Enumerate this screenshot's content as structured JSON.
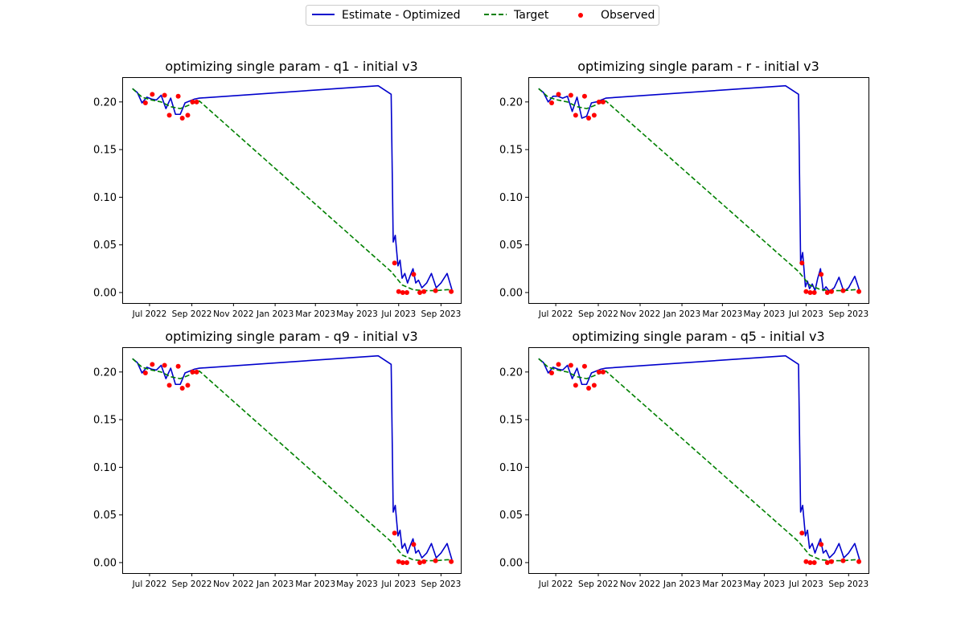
{
  "legend": {
    "placement": "top-center",
    "entries": [
      {
        "label": "Estimate - Optimized",
        "color": "#0000cc",
        "style": "solid-line"
      },
      {
        "label": "Target",
        "color": "#008000",
        "style": "dashed-line"
      },
      {
        "label": "Observed",
        "color": "#ff0000",
        "style": "dot"
      }
    ]
  },
  "chart_data": [
    {
      "type": "line",
      "title": "optimizing single param - q1 - initial v3",
      "xlabel": "",
      "ylabel": "",
      "x_ticks": [
        "Jul 2022",
        "Sep 2022",
        "Nov 2022",
        "Jan 2023",
        "Mar 2023",
        "May 2023",
        "Jul 2023",
        "Sep 2023"
      ],
      "x_tick_dates": [
        "2022-07-01",
        "2022-09-01",
        "2022-11-01",
        "2023-01-01",
        "2023-03-01",
        "2023-05-01",
        "2023-07-01",
        "2023-09-01"
      ],
      "xlim": [
        "2022-05-22",
        "2023-09-30"
      ],
      "y_ticks": [
        "0.00",
        "0.05",
        "0.10",
        "0.15",
        "0.20"
      ],
      "ylim": [
        -0.011,
        0.226
      ],
      "grid": false,
      "series": [
        {
          "name": "Estimate - Optimized",
          "color": "#0000cc",
          "style": "solid",
          "x": [
            "2022-06-06",
            "2022-06-13",
            "2022-06-20",
            "2022-06-27",
            "2022-07-04",
            "2022-07-11",
            "2022-07-18",
            "2022-07-25",
            "2022-08-01",
            "2022-08-08",
            "2022-08-15",
            "2022-08-22",
            "2022-08-29",
            "2022-09-05",
            "2022-09-12",
            "2023-06-01",
            "2023-06-20",
            "2023-06-23",
            "2023-06-26",
            "2023-06-30",
            "2023-07-03",
            "2023-07-06",
            "2023-07-10",
            "2023-07-14",
            "2023-07-18",
            "2023-07-22",
            "2023-07-26",
            "2023-07-30",
            "2023-08-04",
            "2023-08-11",
            "2023-08-18",
            "2023-08-25",
            "2023-09-01",
            "2023-09-10",
            "2023-09-17"
          ],
          "y": [
            0.214,
            0.21,
            0.199,
            0.205,
            0.203,
            0.202,
            0.207,
            0.193,
            0.204,
            0.187,
            0.187,
            0.199,
            0.201,
            0.203,
            0.204,
            0.217,
            0.208,
            0.053,
            0.06,
            0.028,
            0.034,
            0.015,
            0.02,
            0.01,
            0.018,
            0.025,
            0.01,
            0.013,
            0.005,
            0.01,
            0.02,
            0.005,
            0.01,
            0.02,
            0.003
          ]
        },
        {
          "name": "Target",
          "color": "#008000",
          "style": "dashed",
          "x": [
            "2022-06-06",
            "2022-06-20",
            "2022-07-04",
            "2022-07-18",
            "2022-08-01",
            "2022-08-15",
            "2022-08-29",
            "2022-09-12",
            "2023-06-20",
            "2023-07-06",
            "2023-07-22",
            "2023-08-07",
            "2023-08-25",
            "2023-09-10",
            "2023-09-17"
          ],
          "y": [
            0.214,
            0.205,
            0.202,
            0.2,
            0.195,
            0.193,
            0.197,
            0.201,
            0.022,
            0.008,
            0.003,
            0.002,
            0.002,
            0.003,
            0.003
          ]
        },
        {
          "name": "Observed",
          "color": "#ff0000",
          "style": "dot",
          "x": [
            "2022-06-25",
            "2022-07-05",
            "2022-07-23",
            "2022-07-30",
            "2022-08-12",
            "2022-08-18",
            "2022-08-26",
            "2022-09-02",
            "2022-09-08",
            "2023-06-25",
            "2023-07-01",
            "2023-07-07",
            "2023-07-13",
            "2023-07-23",
            "2023-08-01",
            "2023-08-07",
            "2023-08-24",
            "2023-09-16"
          ],
          "y": [
            0.199,
            0.208,
            0.207,
            0.186,
            0.206,
            0.183,
            0.186,
            0.2,
            0.2,
            0.031,
            0.001,
            0.0,
            0.0,
            0.019,
            0.0,
            0.001,
            0.002,
            0.001
          ]
        }
      ]
    },
    {
      "type": "line",
      "title": "optimizing single param - r - initial v3",
      "xlabel": "",
      "ylabel": "",
      "x_ticks": [
        "Jul 2022",
        "Sep 2022",
        "Nov 2022",
        "Jan 2023",
        "Mar 2023",
        "May 2023",
        "Jul 2023",
        "Sep 2023"
      ],
      "x_tick_dates": [
        "2022-07-01",
        "2022-09-01",
        "2022-11-01",
        "2023-01-01",
        "2023-03-01",
        "2023-05-01",
        "2023-07-01",
        "2023-09-01"
      ],
      "xlim": [
        "2022-05-22",
        "2023-09-30"
      ],
      "y_ticks": [
        "0.00",
        "0.05",
        "0.10",
        "0.15",
        "0.20"
      ],
      "ylim": [
        -0.011,
        0.226
      ],
      "grid": false,
      "series": [
        {
          "name": "Estimate - Optimized",
          "color": "#0000cc",
          "style": "solid",
          "x": [
            "2022-06-06",
            "2022-06-13",
            "2022-06-20",
            "2022-06-27",
            "2022-07-04",
            "2022-07-11",
            "2022-07-18",
            "2022-07-25",
            "2022-08-01",
            "2022-08-08",
            "2022-08-15",
            "2022-08-22",
            "2022-08-29",
            "2022-09-05",
            "2022-09-12",
            "2023-06-01",
            "2023-06-20",
            "2023-06-23",
            "2023-06-26",
            "2023-06-30",
            "2023-07-03",
            "2023-07-06",
            "2023-07-10",
            "2023-07-14",
            "2023-07-18",
            "2023-07-22",
            "2023-07-26",
            "2023-07-30",
            "2023-08-04",
            "2023-08-11",
            "2023-08-18",
            "2023-08-25",
            "2023-09-01",
            "2023-09-10",
            "2023-09-17"
          ],
          "y": [
            0.214,
            0.21,
            0.2,
            0.206,
            0.206,
            0.204,
            0.206,
            0.19,
            0.205,
            0.183,
            0.185,
            0.199,
            0.2,
            0.202,
            0.204,
            0.217,
            0.208,
            0.032,
            0.042,
            0.006,
            0.012,
            0.004,
            0.009,
            0.002,
            0.015,
            0.025,
            0.002,
            0.006,
            0.001,
            0.005,
            0.016,
            0.001,
            0.005,
            0.017,
            0.002
          ]
        },
        {
          "name": "Target",
          "color": "#008000",
          "style": "dashed",
          "x": [
            "2022-06-06",
            "2022-06-20",
            "2022-07-04",
            "2022-07-18",
            "2022-08-01",
            "2022-08-15",
            "2022-08-29",
            "2022-09-12",
            "2023-06-20",
            "2023-07-06",
            "2023-07-22",
            "2023-08-07",
            "2023-08-25",
            "2023-09-10",
            "2023-09-17"
          ],
          "y": [
            0.214,
            0.205,
            0.202,
            0.2,
            0.195,
            0.193,
            0.197,
            0.201,
            0.022,
            0.008,
            0.003,
            0.002,
            0.002,
            0.003,
            0.003
          ]
        },
        {
          "name": "Observed",
          "color": "#ff0000",
          "style": "dot",
          "x": [
            "2022-06-25",
            "2022-07-05",
            "2022-07-23",
            "2022-07-30",
            "2022-08-12",
            "2022-08-18",
            "2022-08-26",
            "2022-09-02",
            "2022-09-08",
            "2023-06-25",
            "2023-07-01",
            "2023-07-07",
            "2023-07-13",
            "2023-07-23",
            "2023-08-01",
            "2023-08-07",
            "2023-08-24",
            "2023-09-16"
          ],
          "y": [
            0.199,
            0.208,
            0.207,
            0.186,
            0.206,
            0.183,
            0.186,
            0.2,
            0.2,
            0.031,
            0.001,
            0.0,
            0.0,
            0.019,
            0.0,
            0.001,
            0.002,
            0.001
          ]
        }
      ]
    },
    {
      "type": "line",
      "title": "optimizing single param - q9 - initial v3",
      "xlabel": "",
      "ylabel": "",
      "x_ticks": [
        "Jul 2022",
        "Sep 2022",
        "Nov 2022",
        "Jan 2023",
        "Mar 2023",
        "May 2023",
        "Jul 2023",
        "Sep 2023"
      ],
      "x_tick_dates": [
        "2022-07-01",
        "2022-09-01",
        "2022-11-01",
        "2023-01-01",
        "2023-03-01",
        "2023-05-01",
        "2023-07-01",
        "2023-09-01"
      ],
      "xlim": [
        "2022-05-22",
        "2023-09-30"
      ],
      "y_ticks": [
        "0.00",
        "0.05",
        "0.10",
        "0.15",
        "0.20"
      ],
      "ylim": [
        -0.011,
        0.226
      ],
      "grid": false,
      "series": [
        {
          "name": "Estimate - Optimized",
          "color": "#0000cc",
          "style": "solid",
          "x": [
            "2022-06-06",
            "2022-06-13",
            "2022-06-20",
            "2022-06-27",
            "2022-07-04",
            "2022-07-11",
            "2022-07-18",
            "2022-07-25",
            "2022-08-01",
            "2022-08-08",
            "2022-08-15",
            "2022-08-22",
            "2022-08-29",
            "2022-09-05",
            "2022-09-12",
            "2023-06-01",
            "2023-06-20",
            "2023-06-23",
            "2023-06-26",
            "2023-06-30",
            "2023-07-03",
            "2023-07-06",
            "2023-07-10",
            "2023-07-14",
            "2023-07-18",
            "2023-07-22",
            "2023-07-26",
            "2023-07-30",
            "2023-08-04",
            "2023-08-11",
            "2023-08-18",
            "2023-08-25",
            "2023-09-01",
            "2023-09-10",
            "2023-09-17"
          ],
          "y": [
            0.214,
            0.21,
            0.199,
            0.205,
            0.203,
            0.202,
            0.207,
            0.193,
            0.204,
            0.187,
            0.187,
            0.199,
            0.201,
            0.203,
            0.204,
            0.217,
            0.208,
            0.053,
            0.06,
            0.028,
            0.034,
            0.015,
            0.02,
            0.01,
            0.018,
            0.025,
            0.01,
            0.013,
            0.005,
            0.01,
            0.02,
            0.005,
            0.01,
            0.02,
            0.003
          ]
        },
        {
          "name": "Target",
          "color": "#008000",
          "style": "dashed",
          "x": [
            "2022-06-06",
            "2022-06-20",
            "2022-07-04",
            "2022-07-18",
            "2022-08-01",
            "2022-08-15",
            "2022-08-29",
            "2022-09-12",
            "2023-06-20",
            "2023-07-06",
            "2023-07-22",
            "2023-08-07",
            "2023-08-25",
            "2023-09-10",
            "2023-09-17"
          ],
          "y": [
            0.214,
            0.205,
            0.202,
            0.2,
            0.195,
            0.193,
            0.197,
            0.201,
            0.022,
            0.008,
            0.003,
            0.002,
            0.002,
            0.003,
            0.003
          ]
        },
        {
          "name": "Observed",
          "color": "#ff0000",
          "style": "dot",
          "x": [
            "2022-06-25",
            "2022-07-05",
            "2022-07-23",
            "2022-07-30",
            "2022-08-12",
            "2022-08-18",
            "2022-08-26",
            "2022-09-02",
            "2022-09-08",
            "2023-06-25",
            "2023-07-01",
            "2023-07-07",
            "2023-07-13",
            "2023-07-23",
            "2023-08-01",
            "2023-08-07",
            "2023-08-24",
            "2023-09-16"
          ],
          "y": [
            0.199,
            0.208,
            0.207,
            0.186,
            0.206,
            0.183,
            0.186,
            0.2,
            0.2,
            0.031,
            0.001,
            0.0,
            0.0,
            0.019,
            0.0,
            0.001,
            0.002,
            0.001
          ]
        }
      ]
    },
    {
      "type": "line",
      "title": "optimizing single param - q5 - initial v3",
      "xlabel": "",
      "ylabel": "",
      "x_ticks": [
        "Jul 2022",
        "Sep 2022",
        "Nov 2022",
        "Jan 2023",
        "Mar 2023",
        "May 2023",
        "Jul 2023",
        "Sep 2023"
      ],
      "x_tick_dates": [
        "2022-07-01",
        "2022-09-01",
        "2022-11-01",
        "2023-01-01",
        "2023-03-01",
        "2023-05-01",
        "2023-07-01",
        "2023-09-01"
      ],
      "xlim": [
        "2022-05-22",
        "2023-09-30"
      ],
      "y_ticks": [
        "0.00",
        "0.05",
        "0.10",
        "0.15",
        "0.20"
      ],
      "ylim": [
        -0.011,
        0.226
      ],
      "grid": false,
      "series": [
        {
          "name": "Estimate - Optimized",
          "color": "#0000cc",
          "style": "solid",
          "x": [
            "2022-06-06",
            "2022-06-13",
            "2022-06-20",
            "2022-06-27",
            "2022-07-04",
            "2022-07-11",
            "2022-07-18",
            "2022-07-25",
            "2022-08-01",
            "2022-08-08",
            "2022-08-15",
            "2022-08-22",
            "2022-08-29",
            "2022-09-05",
            "2022-09-12",
            "2023-06-01",
            "2023-06-20",
            "2023-06-23",
            "2023-06-26",
            "2023-06-30",
            "2023-07-03",
            "2023-07-06",
            "2023-07-10",
            "2023-07-14",
            "2023-07-18",
            "2023-07-22",
            "2023-07-26",
            "2023-07-30",
            "2023-08-04",
            "2023-08-11",
            "2023-08-18",
            "2023-08-25",
            "2023-09-01",
            "2023-09-10",
            "2023-09-17"
          ],
          "y": [
            0.214,
            0.21,
            0.199,
            0.205,
            0.203,
            0.202,
            0.207,
            0.193,
            0.204,
            0.187,
            0.187,
            0.199,
            0.201,
            0.203,
            0.204,
            0.217,
            0.208,
            0.053,
            0.06,
            0.028,
            0.034,
            0.015,
            0.02,
            0.01,
            0.018,
            0.025,
            0.01,
            0.013,
            0.005,
            0.01,
            0.02,
            0.005,
            0.01,
            0.02,
            0.003
          ]
        },
        {
          "name": "Target",
          "color": "#008000",
          "style": "dashed",
          "x": [
            "2022-06-06",
            "2022-06-20",
            "2022-07-04",
            "2022-07-18",
            "2022-08-01",
            "2022-08-15",
            "2022-08-29",
            "2022-09-12",
            "2023-06-20",
            "2023-07-06",
            "2023-07-22",
            "2023-08-07",
            "2023-08-25",
            "2023-09-10",
            "2023-09-17"
          ],
          "y": [
            0.214,
            0.205,
            0.202,
            0.2,
            0.195,
            0.193,
            0.197,
            0.201,
            0.022,
            0.008,
            0.003,
            0.002,
            0.002,
            0.003,
            0.003
          ]
        },
        {
          "name": "Observed",
          "color": "#ff0000",
          "style": "dot",
          "x": [
            "2022-06-25",
            "2022-07-05",
            "2022-07-23",
            "2022-07-30",
            "2022-08-12",
            "2022-08-18",
            "2022-08-26",
            "2022-09-02",
            "2022-09-08",
            "2023-06-25",
            "2023-07-01",
            "2023-07-07",
            "2023-07-13",
            "2023-07-23",
            "2023-08-01",
            "2023-08-07",
            "2023-08-24",
            "2023-09-16"
          ],
          "y": [
            0.199,
            0.208,
            0.207,
            0.186,
            0.206,
            0.183,
            0.186,
            0.2,
            0.2,
            0.031,
            0.001,
            0.0,
            0.0,
            0.019,
            0.0,
            0.001,
            0.002,
            0.001
          ]
        }
      ]
    }
  ]
}
